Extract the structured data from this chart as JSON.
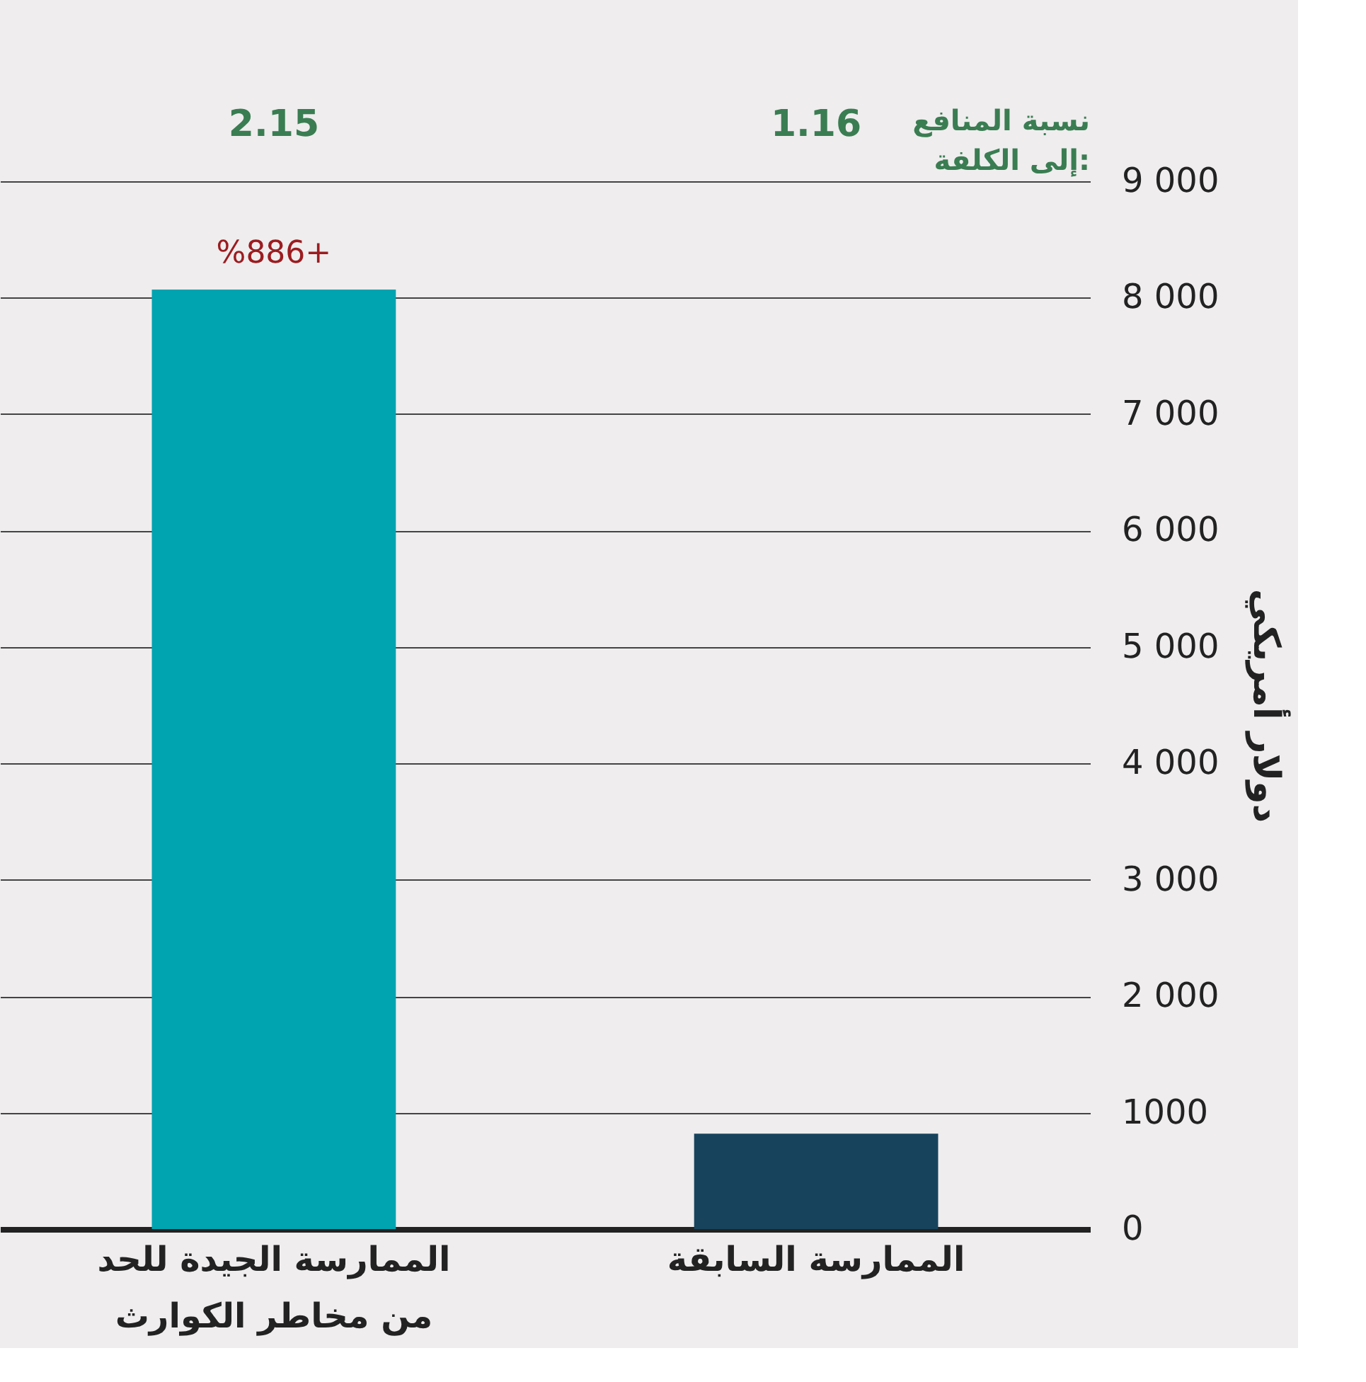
{
  "chart_data": {
    "type": "bar",
    "ylabel": "دولار أمريكي",
    "categories": [
      "الممارسة الجيدة للحد من مخاطر الكوارث",
      "الممارسة السابقة"
    ],
    "values": [
      8070,
      820
    ],
    "colors": [
      "#00a3b0",
      "#17435d"
    ],
    "ylim": [
      0,
      9000
    ],
    "yticks": [
      0,
      {
        "value": 1000,
        "label": "1000"
      },
      {
        "value": 2000,
        "label": "2 000"
      },
      {
        "value": 3000,
        "label": "3 000"
      },
      {
        "value": 4000,
        "label": "4 000"
      },
      {
        "value": 5000,
        "label": "5 000"
      },
      {
        "value": 6000,
        "label": "6 000"
      },
      {
        "value": 7000,
        "label": "7 000"
      },
      {
        "value": 8000,
        "label": "8 000"
      },
      {
        "value": 9000,
        "label": "9 000"
      }
    ],
    "grid": "y",
    "annotations": [
      "نسبة المنافع إلى الكلفة:",
      "2.15",
      "1.16",
      {
        "text": "%886+",
        "x": "الممارسة الجيدة للحد من مخاطر الكوارث",
        "y": 8070
      }
    ]
  }
}
